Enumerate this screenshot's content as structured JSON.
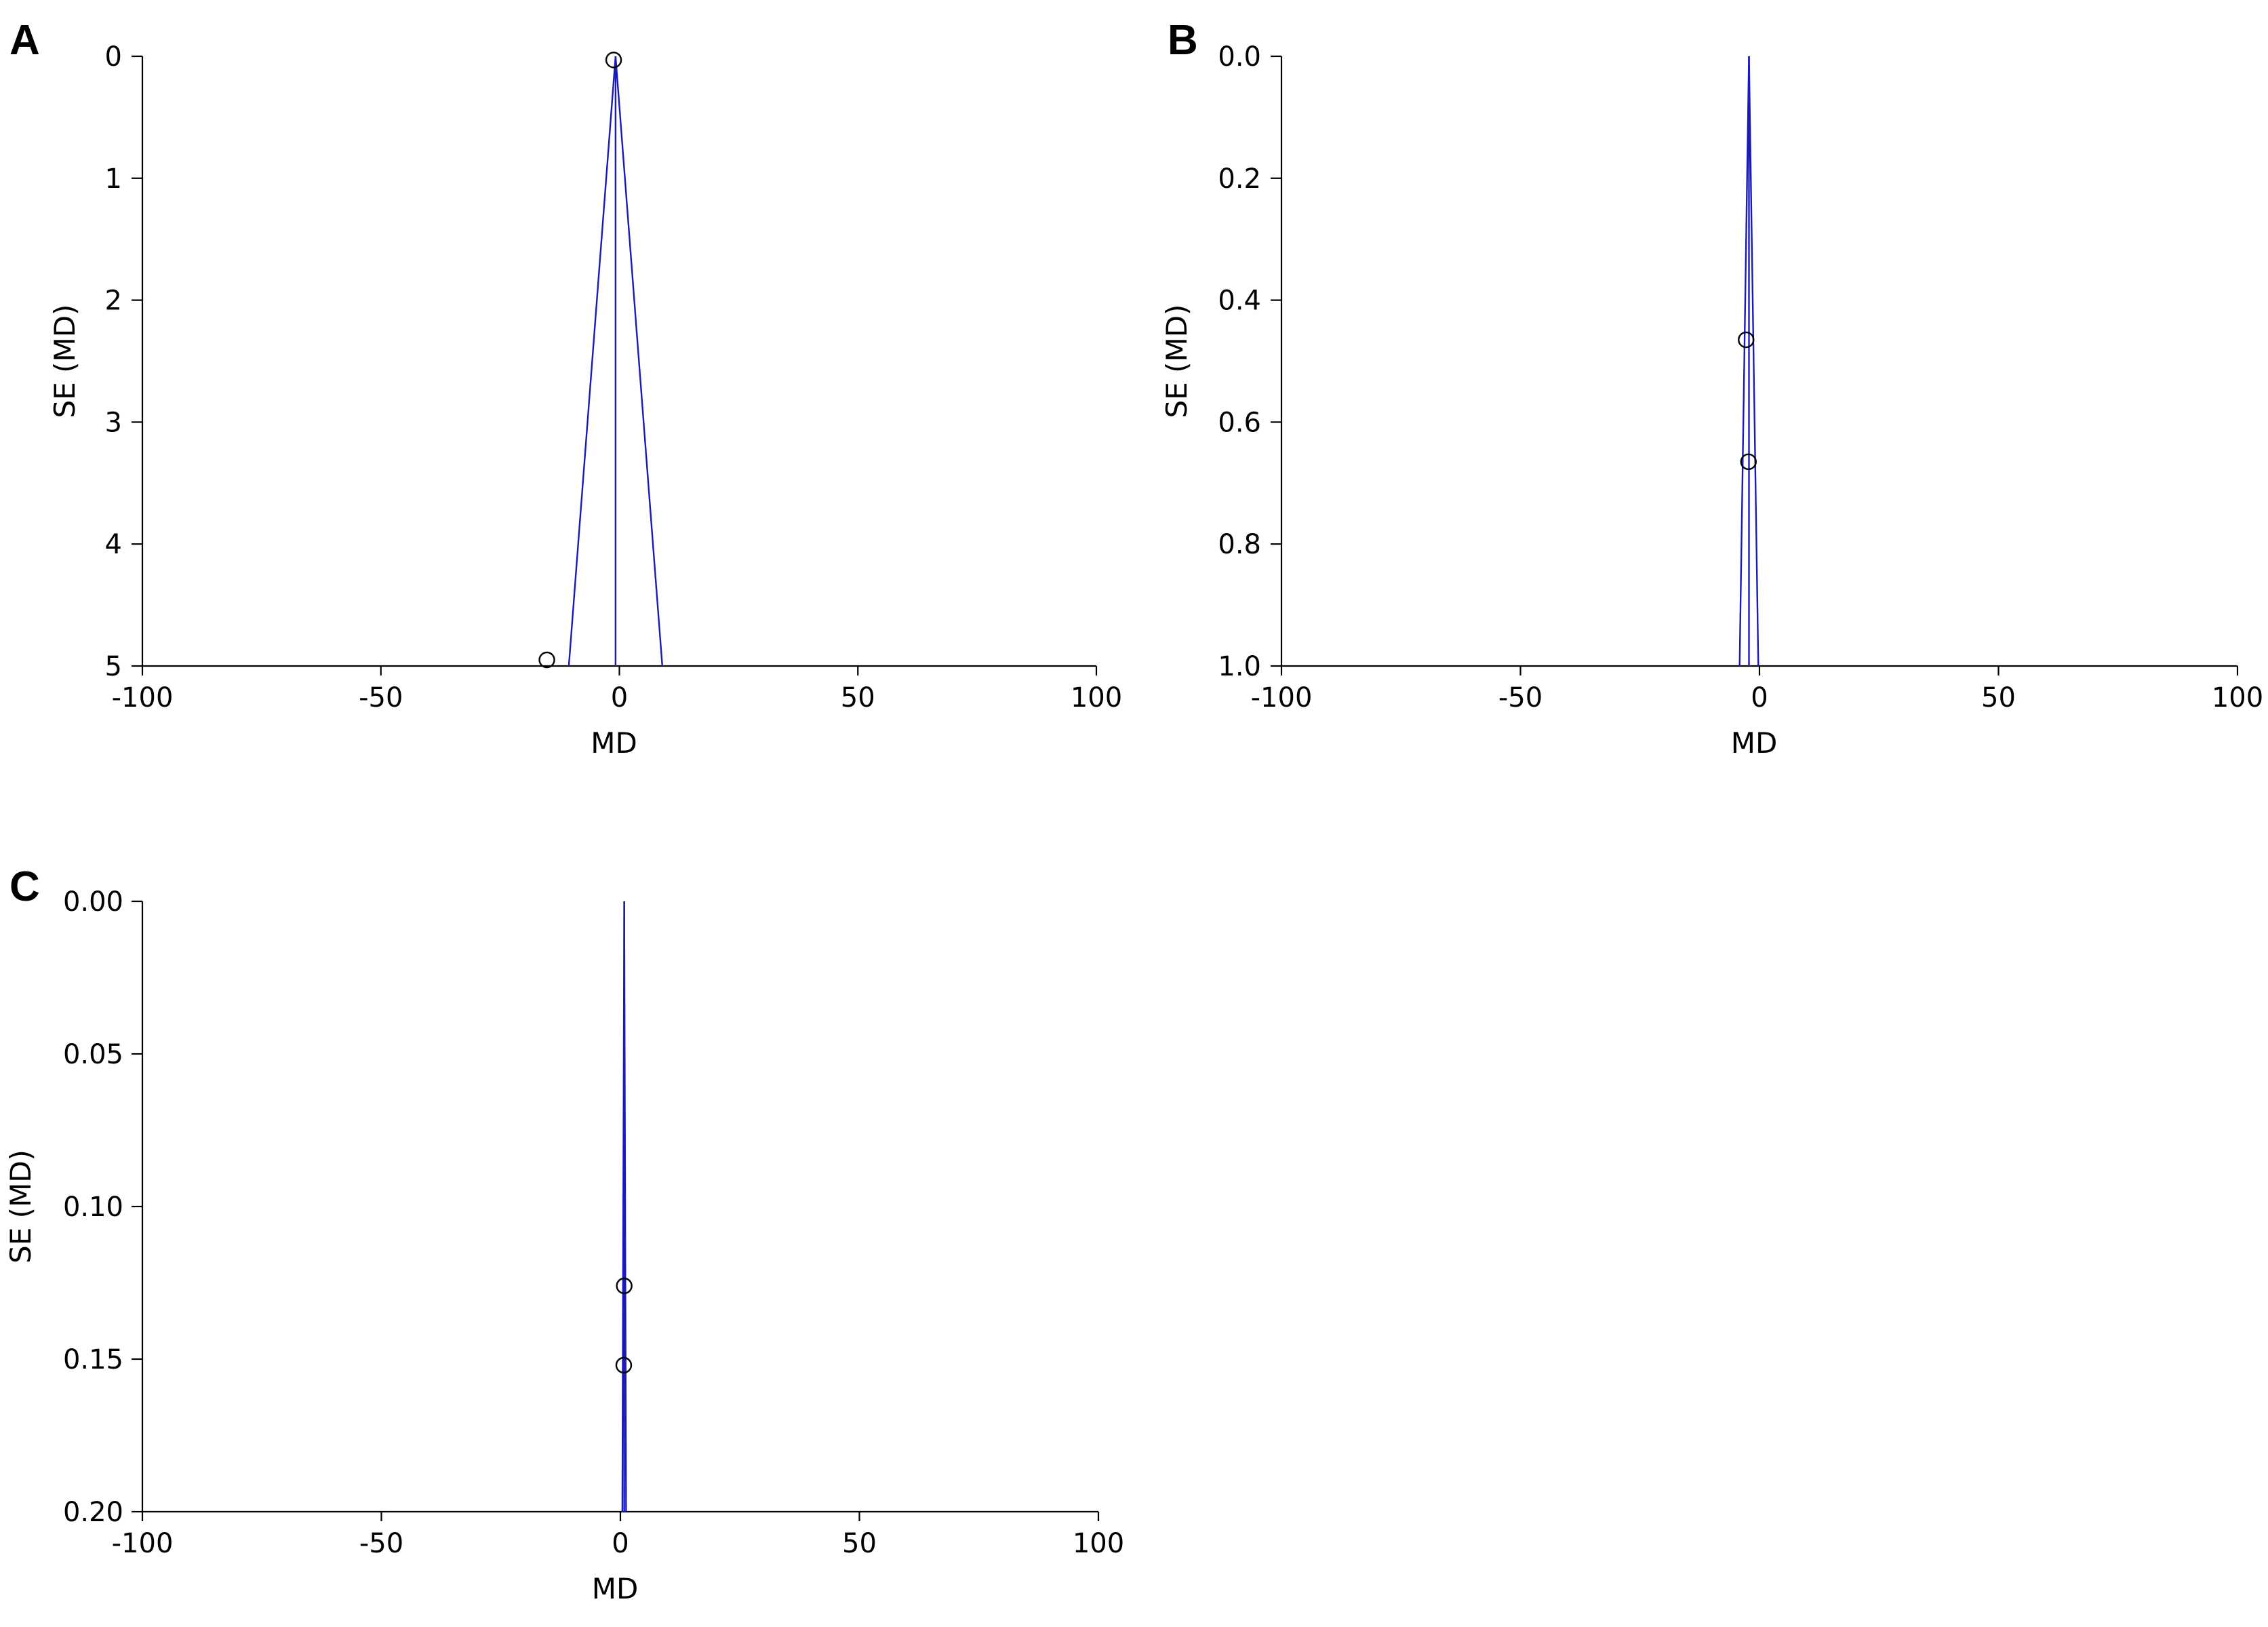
{
  "colors": {
    "funnel": "#1a1ab8",
    "axis": "#000000",
    "point": "#000000",
    "background": "#ffffff"
  },
  "chart_data": [
    {
      "panel_label": "A",
      "type": "scatter",
      "subtype": "funnel",
      "xlabel": "MD",
      "ylabel": "SE (MD)",
      "xlim": [
        -100,
        100
      ],
      "ylim": [
        0,
        5
      ],
      "y_inverted": true,
      "xticks": [
        -100,
        -50,
        0,
        50,
        100
      ],
      "xtick_labels": [
        "-100",
        "-50",
        "0",
        "50",
        "100"
      ],
      "yticks": [
        0,
        1,
        2,
        3,
        4,
        5
      ],
      "ytick_labels": [
        "0",
        "1",
        "2",
        "3",
        "4",
        "5"
      ],
      "grid": false,
      "pooled_md": -0.8,
      "points": [
        {
          "x": -1.2,
          "y": 0.03
        },
        {
          "x": -15.2,
          "y": 4.95
        }
      ]
    },
    {
      "panel_label": "B",
      "type": "scatter",
      "subtype": "funnel",
      "xlabel": "MD",
      "ylabel": "SE (MD)",
      "xlim": [
        -100,
        100
      ],
      "ylim": [
        0,
        1
      ],
      "y_inverted": true,
      "xticks": [
        -100,
        -50,
        0,
        50,
        100
      ],
      "xtick_labels": [
        "-100",
        "-50",
        "0",
        "50",
        "100"
      ],
      "yticks": [
        0,
        0.2,
        0.4,
        0.6,
        0.8,
        1.0
      ],
      "ytick_labels": [
        "0.0",
        "0.2",
        "0.4",
        "0.6",
        "0.8",
        "1.0"
      ],
      "grid": false,
      "pooled_md": -2.2,
      "points": [
        {
          "x": -2.8,
          "y": 0.465
        },
        {
          "x": -2.3,
          "y": 0.665
        }
      ]
    },
    {
      "panel_label": "C",
      "type": "scatter",
      "subtype": "funnel",
      "xlabel": "MD",
      "ylabel": "SE (MD)",
      "xlim": [
        -100,
        100
      ],
      "ylim": [
        0,
        0.2
      ],
      "y_inverted": true,
      "xticks": [
        -100,
        -50,
        0,
        50,
        100
      ],
      "xtick_labels": [
        "-100",
        "-50",
        "0",
        "50",
        "100"
      ],
      "yticks": [
        0,
        0.05,
        0.1,
        0.15,
        0.2
      ],
      "ytick_labels": [
        "0.00",
        "0.05",
        "0.10",
        "0.15",
        "0.20"
      ],
      "grid": false,
      "pooled_md": 0.8,
      "points": [
        {
          "x": 0.8,
          "y": 0.126
        },
        {
          "x": 0.7,
          "y": 0.152
        }
      ]
    }
  ]
}
